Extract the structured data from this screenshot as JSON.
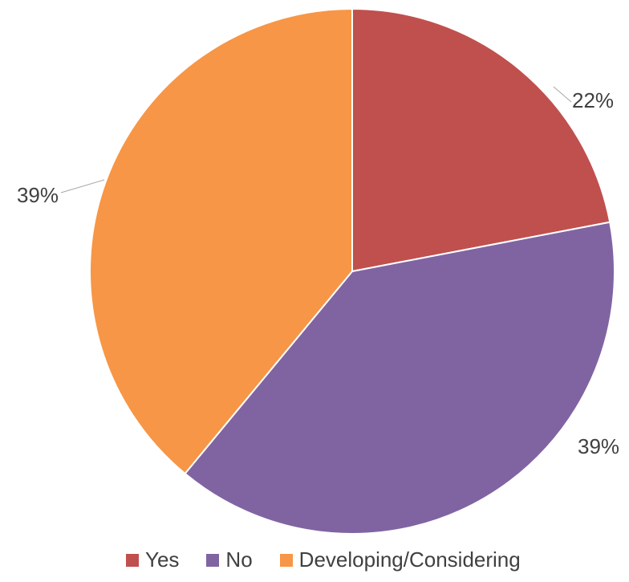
{
  "chart_data": {
    "type": "pie",
    "title": "",
    "categories": [
      "Yes",
      "No",
      "Developing/Considering"
    ],
    "values": [
      22,
      39,
      39
    ],
    "labels": [
      "22%",
      "39%",
      "39%"
    ],
    "colors": [
      "#c0504d",
      "#8064a2",
      "#f79646"
    ],
    "start_angle_deg": 0,
    "direction": "clockwise",
    "legend_position": "bottom"
  }
}
